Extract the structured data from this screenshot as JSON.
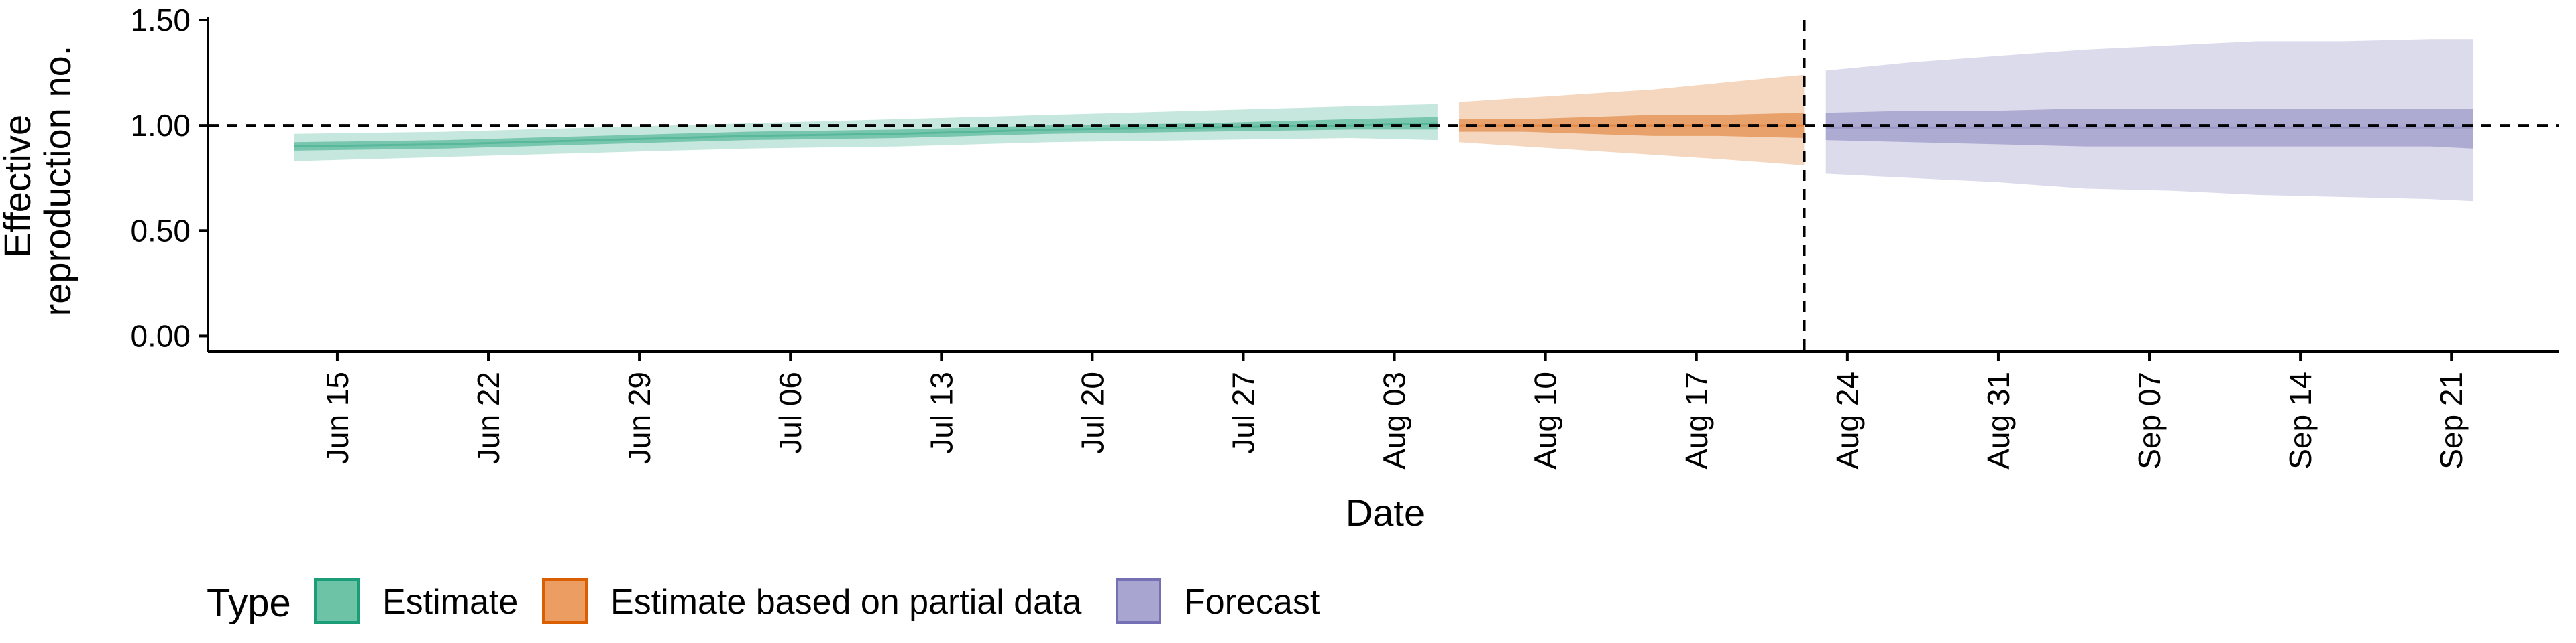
{
  "chart_data": {
    "type": "area",
    "xlabel": "Date",
    "ylabel": [
      "Effective",
      "reproduction no."
    ],
    "ylim": [
      0,
      1.5
    ],
    "y_ticks": [
      0.0,
      0.5,
      1.0,
      1.5
    ],
    "y_tick_labels": [
      "0.00",
      "0.50",
      "1.00",
      "1.50"
    ],
    "x_ticks": [
      "2020-06-15",
      "2020-06-22",
      "2020-06-29",
      "2020-07-06",
      "2020-07-13",
      "2020-07-20",
      "2020-07-27",
      "2020-08-03",
      "2020-08-10",
      "2020-08-17",
      "2020-08-24",
      "2020-08-31",
      "2020-09-07",
      "2020-09-14",
      "2020-09-21"
    ],
    "x_tick_labels": [
      "Jun 15",
      "Jun 22",
      "Jun 29",
      "Jul 06",
      "Jul 13",
      "Jul 20",
      "Jul 27",
      "Aug 03",
      "Aug 10",
      "Aug 17",
      "Aug 24",
      "Aug 31",
      "Sep 07",
      "Sep 14",
      "Sep 21"
    ],
    "xlim": [
      "2020-06-09",
      "2020-09-26"
    ],
    "reference_hline": 1.0,
    "reference_vline": "2020-08-22",
    "grid": false,
    "legend": {
      "title": "Type",
      "position": "bottom-left",
      "entries": [
        {
          "label": "Estimate",
          "fill": "#6cc3a5",
          "stroke": "#1b9e77"
        },
        {
          "label": "Estimate based on partial data",
          "fill": "#eb9d62",
          "stroke": "#d95f02"
        },
        {
          "label": "Forecast",
          "fill": "#a9a5d1",
          "stroke": "#7570b3"
        }
      ]
    },
    "series": [
      {
        "name": "Estimate",
        "fill": "#1b9e77",
        "x": [
          "2020-06-13",
          "2020-06-20",
          "2020-06-27",
          "2020-07-04",
          "2020-07-11",
          "2020-07-18",
          "2020-07-25",
          "2020-08-01",
          "2020-08-05"
        ],
        "median": [
          0.9,
          0.91,
          0.93,
          0.95,
          0.96,
          0.98,
          0.99,
          1.0,
          1.01
        ],
        "lower_50": [
          0.88,
          0.89,
          0.91,
          0.93,
          0.94,
          0.96,
          0.97,
          0.98,
          0.98
        ],
        "upper_50": [
          0.92,
          0.93,
          0.95,
          0.97,
          0.98,
          1.0,
          1.01,
          1.03,
          1.04
        ],
        "lower_90": [
          0.83,
          0.85,
          0.87,
          0.89,
          0.9,
          0.92,
          0.93,
          0.94,
          0.93
        ],
        "upper_90": [
          0.96,
          0.97,
          0.99,
          1.01,
          1.03,
          1.05,
          1.07,
          1.09,
          1.1
        ]
      },
      {
        "name": "Estimate based on partial data",
        "fill": "#d95f02",
        "x": [
          "2020-08-06",
          "2020-08-09",
          "2020-08-12",
          "2020-08-15",
          "2020-08-18",
          "2020-08-22"
        ],
        "median": [
          1.0,
          1.0,
          1.0,
          1.0,
          1.0,
          1.0
        ],
        "lower_50": [
          0.97,
          0.97,
          0.96,
          0.95,
          0.95,
          0.94
        ],
        "upper_50": [
          1.03,
          1.03,
          1.04,
          1.05,
          1.05,
          1.06
        ],
        "lower_90": [
          0.92,
          0.9,
          0.88,
          0.86,
          0.84,
          0.81
        ],
        "upper_90": [
          1.11,
          1.13,
          1.15,
          1.17,
          1.2,
          1.24
        ]
      },
      {
        "name": "Forecast",
        "fill": "#7570b3",
        "x": [
          "2020-08-23",
          "2020-08-27",
          "2020-08-31",
          "2020-09-04",
          "2020-09-08",
          "2020-09-12",
          "2020-09-16",
          "2020-09-20",
          "2020-09-22"
        ],
        "median": [
          0.99,
          0.99,
          0.99,
          0.99,
          0.99,
          0.99,
          0.99,
          0.99,
          0.99
        ],
        "lower_50": [
          0.93,
          0.92,
          0.91,
          0.9,
          0.9,
          0.9,
          0.9,
          0.9,
          0.89
        ],
        "upper_50": [
          1.06,
          1.07,
          1.07,
          1.08,
          1.08,
          1.08,
          1.08,
          1.08,
          1.08
        ],
        "lower_90": [
          0.77,
          0.75,
          0.73,
          0.7,
          0.69,
          0.67,
          0.66,
          0.65,
          0.64
        ],
        "upper_90": [
          1.26,
          1.3,
          1.33,
          1.36,
          1.38,
          1.4,
          1.4,
          1.41,
          1.41
        ]
      }
    ]
  }
}
